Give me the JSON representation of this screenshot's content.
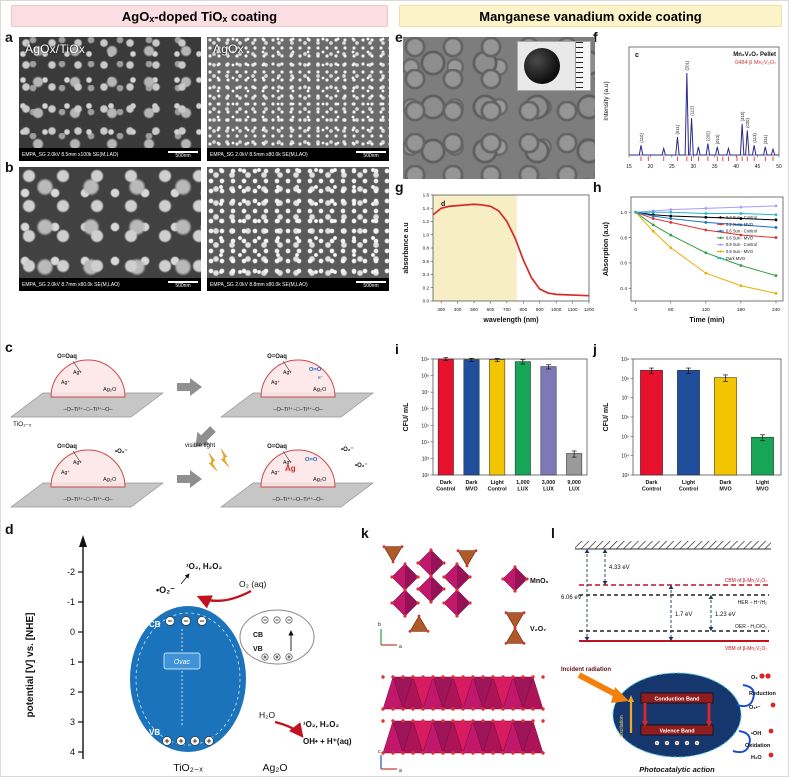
{
  "headers": {
    "left": "AgOₓ-doped TiOₓ coating",
    "right": "Manganese vanadium oxide coating"
  },
  "panel_labels": {
    "a": "a",
    "b": "b",
    "c": "c",
    "d": "d",
    "e": "e",
    "f": "f",
    "g": "g",
    "h": "h",
    "i": "i",
    "j": "j",
    "k": "k",
    "l": "l"
  },
  "sem": {
    "a1": {
      "overlay": "AgOx/TiOx",
      "meta": "EMPA_SG 2.0kV 8.5mm x100k SE(M,LAO)",
      "scale": "500nm"
    },
    "a2": {
      "overlay": "AgOx",
      "meta": "EMPA_SG 2.0kV 8.5mm x80.0k SE(M,LAO)",
      "scale": "500nm"
    },
    "b1": {
      "meta": "EMPA_SG 2.0kV 8.7mm x80.0k SE(M,LAO)",
      "scale": "500nm"
    },
    "b2": {
      "meta": "EMPA_SG 2.0kV 8.8mm x80.0k SE(M,LAO)",
      "scale": "500nm"
    }
  },
  "diagram_c": {
    "o2aq": "O=Oaq",
    "ag_plus": "Ag⁺",
    "ag2o": "Ag₂O",
    "tio2x": "TiO₂₋ₓ",
    "chain3": "–O–Ti³⁺–□–Ti³⁺–O–",
    "chain4": "–O–Ti⁴⁺–O–Ti⁴⁺–O–",
    "visible_light": "visible light",
    "superoxide": "•O₂⁻",
    "ag": "Ag",
    "electron": "e⁻",
    "o2_blue": "O=O"
  },
  "diagram_d": {
    "axis_title": "potential [V] vs. [NHE]",
    "ticks": [
      -2,
      -1,
      0,
      1,
      2,
      3,
      4
    ],
    "singlet_top": "¹O₂, H₂O₂",
    "superoxide": "•O₂⁻",
    "o2aq": "O₂ (aq)",
    "cb": "CB",
    "vb": "VB",
    "ovac": "Ovac",
    "h2o": "H₂O",
    "singlet_right": "¹O₂, H₂O₂",
    "oh": "OH• + H⁺(aq)",
    "tio2x": "TiO₂₋ₓ",
    "ag2o": "Ag₂O"
  },
  "diagram_k": {
    "mno6": "MnO₆",
    "v2o7": "V₂O₇",
    "axis_a": "a",
    "axis_b": "b",
    "axis_c": "c"
  },
  "diagram_l": {
    "e1": "4.33 eV",
    "e2": "6.06 eV",
    "e3": "1.7 eV",
    "e4": "1.23 eV",
    "cbm": "CBM of β-Mn₂V₂O₇",
    "her": "HER – H⁺/H₂",
    "oer": "OER - H₂O/O₂",
    "vbm": "VBM of β-Mn₂V₂O₇",
    "incident": "Incident radiation",
    "cband": "Conduction Band",
    "vband": "Valence Band",
    "excitation": "Excitation",
    "reduction": "Reduction",
    "o2": "O₂",
    "superoxide": "O₂•⁻",
    "oh": "•OH",
    "h2o": "H₂O",
    "oxidation": "Oxidation",
    "caption": "Photocatalytic action"
  },
  "chart_data": [
    {
      "id": "xrd",
      "type": "line",
      "title": "Mn₂V₂O₇ Pellet",
      "title2": "0484 β Mn₂V₂O₇",
      "corner_label": "c",
      "ylabel": "Intensity (a.u)",
      "xlim": [
        15,
        50
      ],
      "xticks": [
        15,
        20,
        25,
        30,
        35,
        40,
        45,
        50
      ],
      "line_color": "#2b2b8f",
      "ref_color": "#e03131",
      "peaks": [
        {
          "x": 17.8,
          "h": 0.12,
          "label": "(110)"
        },
        {
          "x": 23.1,
          "h": 0.08,
          "label": ""
        },
        {
          "x": 26.3,
          "h": 0.22,
          "label": "(011)"
        },
        {
          "x": 28.5,
          "h": 1.0,
          "label": "(201)"
        },
        {
          "x": 29.6,
          "h": 0.45,
          "label": "(112)"
        },
        {
          "x": 31.2,
          "h": 0.1,
          "label": ""
        },
        {
          "x": 33.4,
          "h": 0.14,
          "label": "(202)"
        },
        {
          "x": 35.6,
          "h": 0.1,
          "label": "(013)"
        },
        {
          "x": 38.2,
          "h": 0.08,
          "label": ""
        },
        {
          "x": 41.4,
          "h": 0.38,
          "label": "(310)"
        },
        {
          "x": 42.6,
          "h": 0.3,
          "label": "(020)"
        },
        {
          "x": 44.2,
          "h": 0.12,
          "label": "(113)"
        },
        {
          "x": 46.8,
          "h": 0.1,
          "label": "(311)"
        },
        {
          "x": 48.6,
          "h": 0.07,
          "label": ""
        }
      ],
      "ref_ticks": [
        17.8,
        19.5,
        23.1,
        26.3,
        28.5,
        29.6,
        31.2,
        33.4,
        35.6,
        36.9,
        38.2,
        40.2,
        41.4,
        42.6,
        44.2,
        46.8,
        48.6
      ]
    },
    {
      "id": "absorbance",
      "type": "line",
      "corner_label": "d",
      "xlabel": "wavelength (nm)",
      "ylabel": "absorbance a.u",
      "xlim": [
        250,
        1200
      ],
      "ylim": [
        0,
        1.6
      ],
      "xticks": [
        300,
        400,
        500,
        600,
        700,
        800,
        900,
        1000,
        1100,
        1200
      ],
      "yticks": [
        0.0,
        0.2,
        0.4,
        0.6,
        0.8,
        1.0,
        1.2,
        1.4,
        1.6
      ],
      "shade_to": 760,
      "shade_color": "#f8eec6",
      "line_color": "#d62828",
      "x": [
        250,
        300,
        350,
        400,
        450,
        500,
        550,
        600,
        650,
        700,
        750,
        800,
        850,
        900,
        950,
        1000,
        1100,
        1200
      ],
      "y": [
        1.3,
        1.4,
        1.43,
        1.44,
        1.45,
        1.46,
        1.45,
        1.43,
        1.36,
        1.2,
        0.95,
        0.62,
        0.35,
        0.18,
        0.12,
        0.1,
        0.09,
        0.08
      ]
    },
    {
      "id": "absorption_time",
      "type": "line-multi",
      "xlabel": "Time (min)",
      "ylabel": "Absorption (a.u)",
      "xlim": [
        -8,
        252
      ],
      "ylim": [
        0.3,
        1.12
      ],
      "xticks": [
        0,
        60,
        120,
        180,
        240
      ],
      "yticks": [
        0.4,
        0.6,
        0.8,
        1.0
      ],
      "x": [
        0,
        30,
        60,
        120,
        180,
        240
      ],
      "series": [
        {
          "name": "0.2 Sun - Control",
          "color": "#000000",
          "y": [
            1.0,
            0.98,
            0.97,
            0.96,
            0.95,
            0.94
          ]
        },
        {
          "name": "0.2 Sun - MVO",
          "color": "#e03131",
          "y": [
            1.0,
            0.95,
            0.92,
            0.86,
            0.82,
            0.8
          ]
        },
        {
          "name": "0.6 Sun - Control",
          "color": "#1971c2",
          "y": [
            1.0,
            0.97,
            0.95,
            0.92,
            0.9,
            0.88
          ]
        },
        {
          "name": "0.6 Sun - MVO",
          "color": "#2f9e44",
          "y": [
            1.0,
            0.9,
            0.82,
            0.68,
            0.58,
            0.5
          ]
        },
        {
          "name": "0.9 Sun - Control",
          "color": "#b197fc",
          "y": [
            1.0,
            1.01,
            1.02,
            1.03,
            1.04,
            1.05
          ]
        },
        {
          "name": "0.9 Sun - MVO",
          "color": "#e8b004",
          "y": [
            1.0,
            0.85,
            0.72,
            0.52,
            0.42,
            0.36
          ]
        },
        {
          "name": "Dark MVO",
          "color": "#22b8cf",
          "y": [
            1.0,
            1.0,
            1.0,
            0.99,
            0.99,
            0.98
          ]
        }
      ]
    },
    {
      "id": "cfu_lux",
      "type": "bar-log",
      "ylabel": "CFU/ mL",
      "ylim_exp": [
        2,
        9
      ],
      "yticks": [
        "10²",
        "10³",
        "10⁴",
        "10⁵",
        "10⁶",
        "10⁷",
        "10⁸",
        "10⁹"
      ],
      "categories": [
        "Dark|Control",
        "Dark|MVO",
        "Light|Control",
        "1,000|LUX",
        "3,000|LUX",
        "9,000|LUX"
      ],
      "values": [
        1000000000.0,
        900000000.0,
        900000000.0,
        700000000.0,
        350000000.0,
        2000.0
      ],
      "errors": [
        200000000.0,
        200000000.0,
        200000000.0,
        200000000.0,
        100000000.0,
        800.0
      ],
      "colors": [
        "#e8112d",
        "#1f4e9c",
        "#f2c500",
        "#17a558",
        "#8077b6",
        "#9a9a9a"
      ]
    },
    {
      "id": "cfu_mvo",
      "type": "bar-log",
      "ylabel": "CFU/ mL",
      "ylim_exp": [
        3,
        9
      ],
      "yticks": [
        "10³",
        "10⁴",
        "10⁵",
        "10⁶",
        "10⁷",
        "10⁸",
        "10⁹"
      ],
      "categories": [
        "Dark|Control",
        "Light|Control",
        "Dark|MVO",
        "Light|MVO"
      ],
      "values": [
        260000000.0,
        260000000.0,
        110000000.0,
        90000.0
      ],
      "errors": [
        80000000.0,
        80000000.0,
        40000000.0,
        30000.0
      ],
      "colors": [
        "#e8112d",
        "#1f4e9c",
        "#f2c500",
        "#17a558"
      ]
    }
  ]
}
